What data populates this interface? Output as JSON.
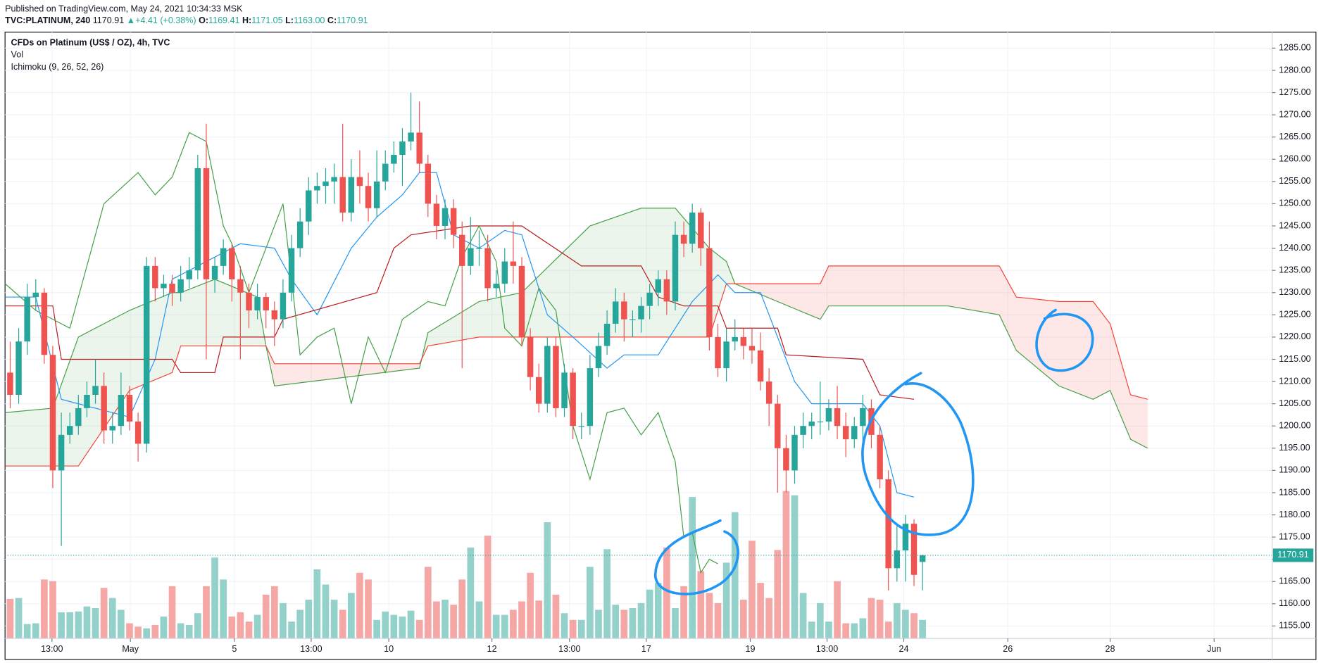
{
  "header": {
    "published": "Published on TradingView.com, May 24, 2021 10:34:33 MSK",
    "symbol": "TVC:PLATINUM, 240",
    "price": "1170.91",
    "arrow": "▲",
    "change": "+4.41 (+0.38%)",
    "ohlc": [
      {
        "label": "O:",
        "value": "1169.41"
      },
      {
        "label": "H:",
        "value": "1171.05"
      },
      {
        "label": "L:",
        "value": "1163.00"
      },
      {
        "label": "C:",
        "value": "1170.91"
      }
    ]
  },
  "chart_data": {
    "type": "candlestick",
    "legend": [
      "CFDs on Platinum (US$ / OZ), 4h, TVC",
      "Vol",
      "Ichimoku (9, 26, 52, 26)"
    ],
    "color_up": "#26a69a",
    "color_down": "#ef5350",
    "open": [
      1212,
      1207,
      1219,
      1229,
      1230,
      1216,
      1190,
      1198,
      1200,
      1204,
      1207,
      1209,
      1199,
      1200,
      1207,
      1201,
      1196,
      1236,
      1231,
      1232,
      1230,
      1233,
      1235,
      1258,
      1233,
      1236,
      1240,
      1233,
      1230,
      1226,
      1229,
      1226,
      1224,
      1230,
      1240,
      1246,
      1253,
      1254,
      1255,
      1256,
      1248,
      1256,
      1254,
      1249,
      1255,
      1259,
      1261,
      1264,
      1266,
      1259,
      1250,
      1245,
      1249,
      1243,
      1236,
      1240,
      1240,
      1231,
      1232,
      1237,
      1236,
      1220,
      1211,
      1205,
      1218,
      1204,
      1212,
      1200,
      1200,
      1213,
      1218,
      1223,
      1228,
      1224,
      1224,
      1227,
      1230,
      1233,
      1228,
      1243,
      1241,
      1248,
      1240,
      1220,
      1213,
      1219,
      1220,
      1218,
      1217,
      1210,
      1205,
      1195,
      1190,
      1198,
      1200,
      1201,
      1201,
      1204,
      1200,
      1197,
      1200,
      1204,
      1198,
      1188,
      1168,
      1172,
      1178,
      1169.41
    ],
    "high": [
      1219,
      1222,
      1232,
      1233,
      1231,
      1218,
      1203,
      1203,
      1207,
      1210,
      1215,
      1212,
      1203,
      1212,
      1209,
      1203,
      1238,
      1238,
      1234,
      1234,
      1236,
      1238,
      1261,
      1268,
      1238,
      1242,
      1241,
      1236,
      1232,
      1232,
      1230,
      1228,
      1233,
      1243,
      1249,
      1256,
      1257,
      1258,
      1259,
      1268,
      1260,
      1262,
      1257,
      1262,
      1262,
      1264,
      1267,
      1275,
      1273,
      1261,
      1252,
      1251,
      1251,
      1246,
      1247,
      1244,
      1243,
      1235,
      1240,
      1246,
      1238,
      1222,
      1214,
      1220,
      1220,
      1214,
      1213,
      1203,
      1216,
      1221,
      1226,
      1231,
      1230,
      1226,
      1229,
      1232,
      1235,
      1235,
      1246,
      1246,
      1250,
      1249,
      1246,
      1223,
      1222,
      1224,
      1222,
      1222,
      1221,
      1213,
      1207,
      1198,
      1200,
      1203,
      1203,
      1210,
      1206,
      1209,
      1203,
      1202,
      1207,
      1206,
      1200,
      1190,
      1178,
      1180,
      1179,
      1171.05
    ],
    "low": [
      1204,
      1205,
      1216,
      1226,
      1214,
      1186,
      1173,
      1196,
      1198,
      1202,
      1205,
      1196,
      1196,
      1198,
      1199,
      1192,
      1194,
      1228,
      1229,
      1227,
      1228,
      1231,
      1233,
      1215,
      1230,
      1234,
      1228,
      1215,
      1222,
      1224,
      1222,
      1218,
      1222,
      1228,
      1238,
      1243,
      1250,
      1250,
      1250,
      1246,
      1246,
      1250,
      1246,
      1247,
      1253,
      1257,
      1254,
      1262,
      1257,
      1247,
      1242,
      1242,
      1240,
      1213,
      1234,
      1236,
      1228,
      1229,
      1230,
      1232,
      1218,
      1208,
      1203,
      1203,
      1202,
      1202,
      1197,
      1197,
      1198,
      1211,
      1216,
      1221,
      1219,
      1220,
      1221,
      1224,
      1227,
      1225,
      1226,
      1238,
      1239,
      1236,
      1217,
      1211,
      1210,
      1217,
      1215,
      1214,
      1208,
      1200,
      1185,
      1185,
      1187,
      1195,
      1197,
      1198,
      1199,
      1197,
      1193,
      1195,
      1196,
      1195,
      1186,
      1163,
      1165,
      1165,
      1164,
      1163.0
    ],
    "close": [
      1207,
      1219,
      1229,
      1230,
      1216,
      1190,
      1198,
      1200,
      1204,
      1207,
      1209,
      1199,
      1200,
      1207,
      1201,
      1196,
      1236,
      1231,
      1232,
      1230,
      1233,
      1235,
      1258,
      1233,
      1236,
      1240,
      1233,
      1230,
      1226,
      1229,
      1226,
      1224,
      1230,
      1240,
      1246,
      1253,
      1254,
      1255,
      1256,
      1248,
      1256,
      1254,
      1249,
      1255,
      1259,
      1261,
      1264,
      1266,
      1259,
      1250,
      1245,
      1249,
      1243,
      1236,
      1240,
      1240,
      1231,
      1232,
      1237,
      1236,
      1220,
      1211,
      1205,
      1218,
      1204,
      1212,
      1200,
      1200,
      1213,
      1218,
      1223,
      1228,
      1224,
      1224,
      1227,
      1230,
      1233,
      1228,
      1243,
      1241,
      1248,
      1240,
      1220,
      1213,
      1219,
      1220,
      1218,
      1217,
      1210,
      1205,
      1195,
      1190,
      1198,
      1200,
      1201,
      1201,
      1204,
      1200,
      1197,
      1200,
      1204,
      1198,
      1188,
      1168,
      1172,
      1178,
      1166.5,
      1170.91
    ],
    "volume": {
      "color_up": "#94d1cb",
      "color_down": "#f5a7a5",
      "values": [
        47,
        48,
        17,
        18,
        70,
        68,
        31,
        31,
        32,
        38,
        36,
        60,
        48,
        34,
        18,
        14,
        12,
        16,
        26,
        62,
        18,
        16,
        30,
        62,
        96,
        70,
        26,
        31,
        20,
        28,
        52,
        62,
        42,
        20,
        34,
        46,
        82,
        64,
        46,
        34,
        54,
        78,
        70,
        22,
        32,
        28,
        26,
        33,
        22,
        85,
        44,
        46,
        40,
        70,
        108,
        44,
        122,
        28,
        28,
        34,
        44,
        78,
        45,
        138,
        52,
        30,
        22,
        22,
        85,
        34,
        106,
        40,
        34,
        36,
        42,
        58,
        66,
        108,
        36,
        62,
        168,
        80,
        54,
        42,
        90,
        150,
        46,
        116,
        66,
        48,
        105,
        175,
        170,
        54,
        20,
        42,
        20,
        68,
        18,
        18,
        24,
        48,
        46,
        20,
        42,
        34,
        30,
        22
      ]
    },
    "cloud": {
      "color_a": "#43a047",
      "color_b": "#f44336",
      "fill_up": "rgba(67,160,71,0.1)",
      "fill_down": "rgba(244,67,54,0.12)",
      "x": [
        -0.6,
        5,
        8,
        14,
        19,
        20,
        24,
        29,
        30,
        31,
        48,
        49,
        55,
        60,
        68,
        74,
        78,
        82,
        84,
        85,
        95,
        96,
        110,
        116,
        118,
        123,
        127,
        129,
        131.4,
        133.4
      ],
      "span_a": [
        1203,
        1204,
        1220,
        1226,
        1230,
        1230,
        1233,
        1229,
        1218,
        1209,
        1213,
        1221,
        1228,
        1230,
        1245,
        1249,
        1249,
        1240,
        1237,
        1232,
        1224,
        1227,
        1227,
        1225,
        1217,
        1209,
        1206,
        1208,
        1197,
        1195
      ],
      "span_b": [
        1191,
        1191,
        1191,
        1208,
        1212,
        1218,
        1218,
        1218,
        1218,
        1214,
        1214,
        1218,
        1220,
        1220,
        1220,
        1220,
        1220,
        1220,
        1232,
        1232,
        1232,
        1236,
        1236,
        1236,
        1229,
        1228,
        1228,
        1223,
        1207,
        1206
      ]
    },
    "lines": [
      {
        "color": "#2196f3",
        "x": [
          -0.6,
          3,
          6,
          14,
          17,
          19,
          27,
          31,
          33,
          36,
          40,
          43,
          46,
          48,
          50,
          52,
          55,
          58,
          60,
          63,
          66,
          70,
          72,
          76,
          78,
          80,
          83,
          85,
          88,
          90,
          92,
          94,
          100,
          102,
          104,
          106
        ],
        "values": [
          1229,
          1229,
          1206,
          1202,
          1215,
          1233,
          1241,
          1240,
          1233,
          1225,
          1240,
          1247,
          1252,
          1257,
          1257,
          1243,
          1240,
          1244,
          1243,
          1225,
          1220,
          1213,
          1216,
          1216,
          1222,
          1228,
          1234,
          1230,
          1230,
          1220,
          1210,
          1205,
          1205,
          1200,
          1185,
          1184
        ]
      },
      {
        "color": "#b71c1c",
        "x": [
          -0.6,
          5,
          6,
          19,
          20,
          24,
          25,
          31,
          32,
          43,
          45,
          47,
          54,
          60,
          67,
          74,
          76,
          79,
          83,
          84,
          90,
          91,
          100,
          102,
          106
        ],
        "values": [
          1227,
          1227,
          1215,
          1215,
          1212,
          1212,
          1220,
          1220,
          1224,
          1230,
          1240,
          1243,
          1245,
          1245,
          1236,
          1236,
          1229,
          1227,
          1227,
          1222,
          1222,
          1216,
          1215,
          1207,
          1206
        ]
      },
      {
        "color": "#43a047",
        "x": [
          -0.6,
          3,
          7,
          11,
          15,
          17,
          19,
          21,
          23,
          25,
          26,
          28,
          30,
          32,
          34,
          36,
          38,
          40,
          42,
          44,
          46,
          49,
          51,
          53,
          55,
          57,
          58,
          60,
          62,
          64,
          66,
          68,
          70,
          72,
          74,
          76,
          78,
          79,
          80,
          81,
          82,
          83
        ],
        "values": [
          1232,
          1226,
          1222,
          1250,
          1257,
          1252,
          1256,
          1266,
          1264,
          1245,
          1241,
          1230,
          1240,
          1250,
          1216,
          1220,
          1222,
          1205,
          1220,
          1212,
          1224,
          1228,
          1227,
          1238,
          1245,
          1237,
          1222,
          1218,
          1231,
          1226,
          1200,
          1188,
          1203,
          1204,
          1198,
          1203,
          1192,
          1175,
          1176,
          1167,
          1170,
          1169
        ]
      }
    ],
    "last_price": 1170.91,
    "xlim": [
      -0.6,
      148
    ],
    "xticks": [
      {
        "value": 4.9,
        "label": "13:00"
      },
      {
        "value": 14.1,
        "label": "May"
      },
      {
        "value": 26.3,
        "label": "5"
      },
      {
        "value": 35.3,
        "label": "13:00"
      },
      {
        "value": 44.4,
        "label": "10"
      },
      {
        "value": 56.5,
        "label": "12"
      },
      {
        "value": 65.6,
        "label": "13:00"
      },
      {
        "value": 74.6,
        "label": "17"
      },
      {
        "value": 86.8,
        "label": "19"
      },
      {
        "value": 95.8,
        "label": "13:00"
      },
      {
        "value": 104.8,
        "label": "24"
      },
      {
        "value": 117,
        "label": "26"
      },
      {
        "value": 129,
        "label": "28"
      },
      {
        "value": 141.2,
        "label": "Jun"
      }
    ],
    "ylim": [
      1152.2,
      1288.6
    ],
    "yticks": [
      {
        "value": 1155,
        "label": "1155.00"
      },
      {
        "value": 1160,
        "label": "1160.00"
      },
      {
        "value": 1165,
        "label": "1165.00"
      },
      {
        "value": 1170,
        "label": "1170.00"
      },
      {
        "value": 1175,
        "label": "1175.00"
      },
      {
        "value": 1180,
        "label": "1180.00"
      },
      {
        "value": 1185,
        "label": "1185.00"
      },
      {
        "value": 1190,
        "label": "1190.00"
      },
      {
        "value": 1195,
        "label": "1195.00"
      },
      {
        "value": 1200,
        "label": "1200.00"
      },
      {
        "value": 1205,
        "label": "1205.00"
      },
      {
        "value": 1210,
        "label": "1210.00"
      },
      {
        "value": 1215,
        "label": "1215.00"
      },
      {
        "value": 1220,
        "label": "1220.00"
      },
      {
        "value": 1225,
        "label": "1225.00"
      },
      {
        "value": 1230,
        "label": "1230.00"
      },
      {
        "value": 1235,
        "label": "1235.00"
      },
      {
        "value": 1240,
        "label": "1240.00"
      },
      {
        "value": 1245,
        "label": "1245.00"
      },
      {
        "value": 1250,
        "label": "1250.00"
      },
      {
        "value": 1255,
        "label": "1255.00"
      },
      {
        "value": 1260,
        "label": "1260.00"
      },
      {
        "value": 1265,
        "label": "1265.00"
      },
      {
        "value": 1270,
        "label": "1270.00"
      },
      {
        "value": 1275,
        "label": "1275.00"
      },
      {
        "value": 1280,
        "label": "1280.00"
      },
      {
        "value": 1285,
        "label": "1285.00"
      }
    ],
    "grid": true
  }
}
